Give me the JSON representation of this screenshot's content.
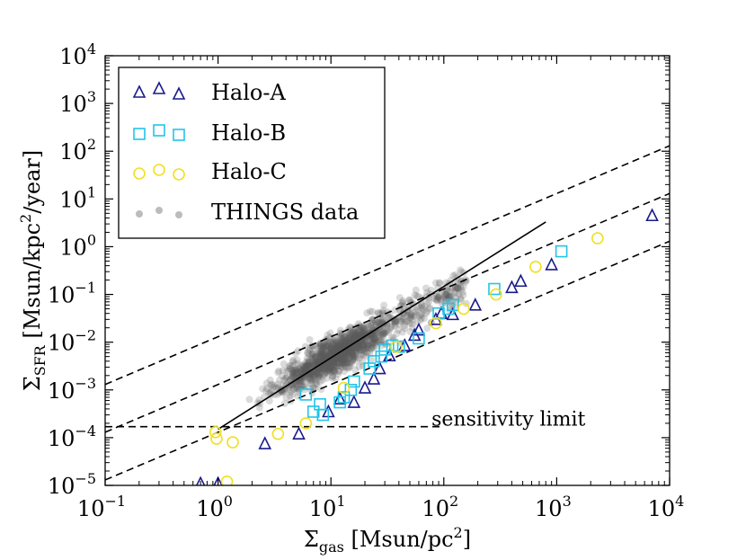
{
  "chart_data": {
    "type": "scatter",
    "xscale": "log",
    "yscale": "log",
    "xlim": [
      0.1,
      10000
    ],
    "ylim": [
      1e-05,
      10000
    ],
    "xlabel": {
      "main": "Σ",
      "sub": "gas",
      "units": " [Msun/pc",
      "sup": "2",
      "end": "]"
    },
    "ylabel": {
      "main": "Σ",
      "sub": "SFR",
      "units": " [Msun/kpc",
      "sup": "2",
      "end": "/year]"
    },
    "x_ticks": [
      {
        "value": 0.1,
        "base": "10",
        "exp": "−1"
      },
      {
        "value": 1,
        "base": "10",
        "exp": "0"
      },
      {
        "value": 10,
        "base": "10",
        "exp": "1"
      },
      {
        "value": 100,
        "base": "10",
        "exp": "2"
      },
      {
        "value": 1000,
        "base": "10",
        "exp": "3"
      },
      {
        "value": 10000,
        "base": "10",
        "exp": "4"
      }
    ],
    "y_ticks": [
      {
        "value": 1e-05,
        "base": "10",
        "exp": "−5"
      },
      {
        "value": 0.0001,
        "base": "10",
        "exp": "−4"
      },
      {
        "value": 0.001,
        "base": "10",
        "exp": "−3"
      },
      {
        "value": 0.01,
        "base": "10",
        "exp": "−2"
      },
      {
        "value": 0.1,
        "base": "10",
        "exp": "−1"
      },
      {
        "value": 1,
        "base": "10",
        "exp": "0"
      },
      {
        "value": 10,
        "base": "10",
        "exp": "1"
      },
      {
        "value": 100,
        "base": "10",
        "exp": "2"
      },
      {
        "value": 1000,
        "base": "10",
        "exp": "3"
      },
      {
        "value": 10000,
        "base": "10",
        "exp": "4"
      }
    ],
    "series": [
      {
        "name": "Halo-A",
        "marker": "triangle",
        "color": "#1a1a8c",
        "points": [
          [
            0.7,
            1.1e-05
          ],
          [
            1.0,
            1.1e-05
          ],
          [
            2.6,
            7.5e-05
          ],
          [
            5.2,
            0.00012
          ],
          [
            9.5,
            0.00035
          ],
          [
            12,
            0.00065
          ],
          [
            16,
            0.00055
          ],
          [
            20,
            0.0011
          ],
          [
            24,
            0.0017
          ],
          [
            27,
            0.0028
          ],
          [
            33,
            0.0052
          ],
          [
            45,
            0.0085
          ],
          [
            55,
            0.014
          ],
          [
            60,
            0.018
          ],
          [
            85,
            0.03
          ],
          [
            95,
            0.04
          ],
          [
            120,
            0.038
          ],
          [
            190,
            0.06
          ],
          [
            400,
            0.14
          ],
          [
            480,
            0.19
          ],
          [
            900,
            0.42
          ],
          [
            7000,
            4.5
          ]
        ]
      },
      {
        "name": "Halo-B",
        "marker": "square",
        "color": "#22c4e8",
        "points": [
          [
            6,
            0.0008
          ],
          [
            7,
            0.00035
          ],
          [
            8,
            0.0005
          ],
          [
            8.5,
            0.0003
          ],
          [
            12,
            0.00055
          ],
          [
            13,
            0.0007
          ],
          [
            15,
            0.001
          ],
          [
            16,
            0.0015
          ],
          [
            22,
            0.0028
          ],
          [
            24,
            0.004
          ],
          [
            28,
            0.005
          ],
          [
            30,
            0.007
          ],
          [
            35,
            0.0085
          ],
          [
            40,
            0.008
          ],
          [
            60,
            0.012
          ],
          [
            90,
            0.04
          ],
          [
            110,
            0.05
          ],
          [
            120,
            0.06
          ],
          [
            280,
            0.13
          ],
          [
            1100,
            0.8
          ]
        ]
      },
      {
        "name": "Halo-C",
        "marker": "circle",
        "color": "#f0e020",
        "points": [
          [
            0.95,
            0.00013
          ],
          [
            0.97,
            9.5e-05
          ],
          [
            1.2,
            1.2e-05
          ],
          [
            1.35,
            8e-05
          ],
          [
            3.4,
            0.00012
          ],
          [
            6,
            0.0002
          ],
          [
            13,
            0.0011
          ],
          [
            38,
            0.008
          ],
          [
            85,
            0.025
          ],
          [
            150,
            0.05
          ],
          [
            290,
            0.1
          ],
          [
            650,
            0.38
          ],
          [
            2300,
            1.5
          ]
        ]
      }
    ],
    "background_series": {
      "name": "THINGS data",
      "color": "#808080"
    },
    "lines": [
      {
        "kind": "solid",
        "x": [
          1,
          800
        ],
        "y": [
          0.00015,
          3.3
        ]
      },
      {
        "kind": "dashed",
        "x": [
          0.1,
          10000
        ],
        "y": [
          0.0013,
          130
        ]
      },
      {
        "kind": "dashed",
        "x": [
          0.1,
          10000
        ],
        "y": [
          0.00013,
          13
        ]
      },
      {
        "kind": "dashed",
        "x": [
          0.1,
          10000
        ],
        "y": [
          1.3e-05,
          1.3
        ]
      },
      {
        "kind": "dashed",
        "x": [
          0.1,
          100
        ],
        "y": [
          0.00017,
          0.00017
        ]
      }
    ],
    "annotation": {
      "text": "sensitivity limit",
      "x": 1200,
      "y": 0.00017
    },
    "legend": {
      "position": "top-left"
    }
  }
}
